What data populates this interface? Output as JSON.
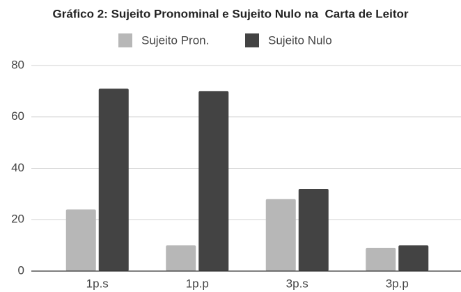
{
  "chart_data": {
    "type": "bar",
    "title": "Gráfico 2: Sujeito Pronominal e Sujeito Nulo na  Carta de Leitor",
    "categories": [
      "1p.s",
      "1p.p",
      "3p.s",
      "3p.p"
    ],
    "series": [
      {
        "name": "Sujeito Pron.",
        "color": "#b7b7b7",
        "values": [
          24,
          10,
          28,
          9
        ]
      },
      {
        "name": "Sujeito Nulo",
        "color": "#434343",
        "values": [
          71,
          70,
          32,
          10
        ]
      }
    ],
    "ylim": [
      0,
      80
    ],
    "yticks": [
      0,
      20,
      40,
      60,
      80
    ],
    "grid": true,
    "legend": "top"
  }
}
